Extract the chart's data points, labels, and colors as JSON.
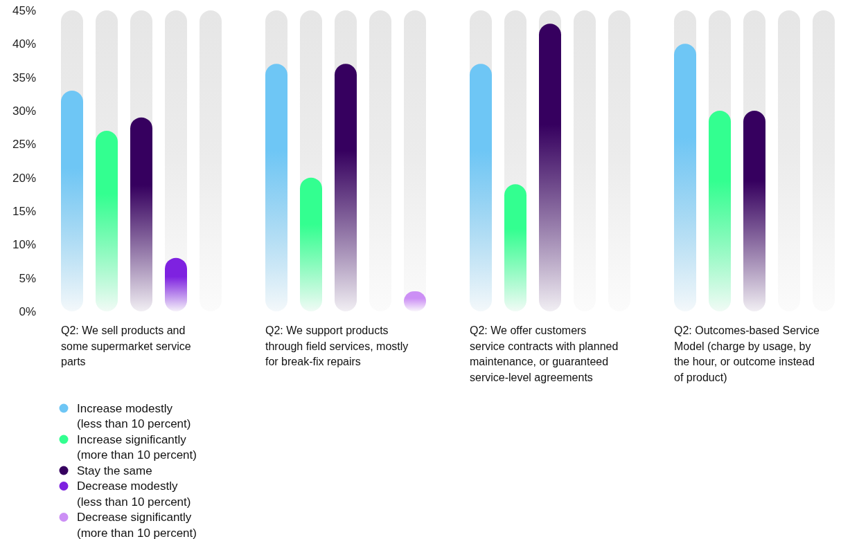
{
  "chart_data": {
    "type": "bar",
    "categories": [
      "Q2: We sell products and some supermarket service parts",
      "Q2: We support products through field services, mostly for break-fix repairs",
      "Q2: We offer customers service contracts with planned maintenance, or guaranteed service-level agreements",
      "Q2: Outcomes-based Service Model (charge by usage, by the hour, or outcome instead of product)"
    ],
    "series": [
      {
        "name": "Increase modestly (less than 10 percent)",
        "color": "#6ec6f5",
        "values": [
          33,
          37,
          37,
          40
        ]
      },
      {
        "name": "Increase significantly (more than 10 percent)",
        "color": "#33ff90",
        "values": [
          27,
          20,
          19,
          30
        ]
      },
      {
        "name": "Stay the same",
        "color": "#36005f",
        "values": [
          29,
          37,
          43,
          30
        ]
      },
      {
        "name": "Decrease modestly (less than 10 percent)",
        "color": "#7e22e0",
        "values": [
          8,
          0,
          0,
          0
        ]
      },
      {
        "name": "Decrease significantly (more than 10 percent)",
        "color": "#cc8ff5",
        "values": [
          0,
          3,
          0,
          0
        ]
      }
    ],
    "ylim": [
      0,
      45
    ],
    "yticks": [
      {
        "value": 0,
        "label": "0%"
      },
      {
        "value": 5,
        "label": "5%"
      },
      {
        "value": 10,
        "label": "10%"
      },
      {
        "value": 15,
        "label": "15%"
      },
      {
        "value": 20,
        "label": "20%"
      },
      {
        "value": 25,
        "label": "25%"
      },
      {
        "value": 30,
        "label": "30%"
      },
      {
        "value": 35,
        "label": "35%"
      },
      {
        "value": 40,
        "label": "40%"
      },
      {
        "value": 45,
        "label": "45%"
      }
    ],
    "legend": "bottom left"
  }
}
